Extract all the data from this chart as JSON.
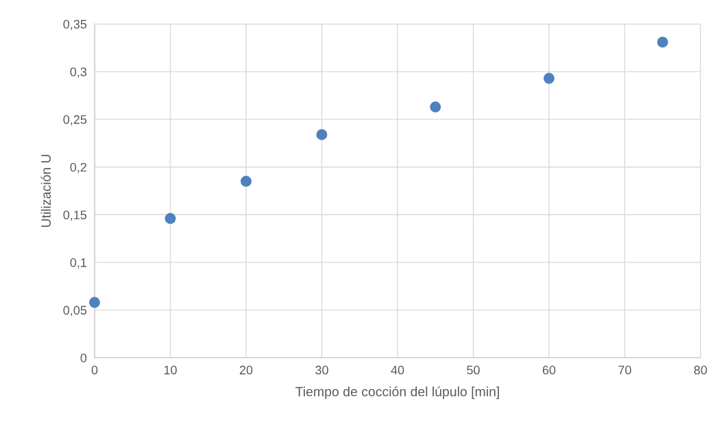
{
  "chart_data": {
    "type": "scatter",
    "xlabel": "Tiempo de cocción del lúpulo [min]",
    "ylabel": "Utilización U",
    "x": [
      0,
      10,
      20,
      30,
      45,
      60,
      75
    ],
    "values": [
      0.058,
      0.146,
      0.185,
      0.234,
      0.263,
      0.293,
      0.331
    ],
    "color": "#4f81bd",
    "marker": "circle",
    "xlim": [
      0,
      80
    ],
    "xticks": [
      0,
      10,
      20,
      30,
      40,
      50,
      60,
      70,
      80
    ],
    "ylim": [
      0,
      0.35
    ],
    "yticks": [
      {
        "value": 0,
        "label": "0"
      },
      {
        "value": 0.05,
        "label": "0,05"
      },
      {
        "value": 0.1,
        "label": "0,1"
      },
      {
        "value": 0.15,
        "label": "0,15"
      },
      {
        "value": 0.2,
        "label": "0,2"
      },
      {
        "value": 0.25,
        "label": "0,25"
      },
      {
        "value": 0.3,
        "label": "0,3"
      },
      {
        "value": 0.35,
        "label": "0,35"
      }
    ],
    "grid": true
  }
}
